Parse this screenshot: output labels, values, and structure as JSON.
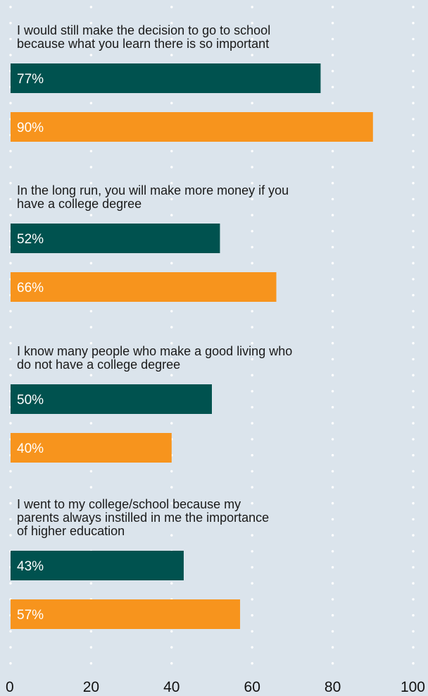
{
  "chart_data": {
    "type": "bar",
    "orientation": "horizontal",
    "xlim": [
      0,
      100
    ],
    "x_ticks": [
      "0",
      "20",
      "40",
      "60",
      "80",
      "100"
    ],
    "grid": "dotted vertical",
    "colors": {
      "series_1": "#00524f",
      "series_2": "#f7941d",
      "background": "#dbe4ec"
    },
    "categories": [
      "I would still make the decision to go to school because what you learn there is so important",
      "In the long run, you will make more money if you have a college degree",
      "I know many people who make a good living who do not have a college degree",
      "I went to my college/school because my parents always instilled in me the importance of higher education"
    ],
    "category_lines": [
      [
        "I would still make the decision to go to school",
        "because what you learn there is so important"
      ],
      [
        "In the long run, you will make more money if you",
        "have a college degree"
      ],
      [
        "I know many people who make a good living who",
        "do not have a college degree"
      ],
      [
        "I went to my college/school because my",
        "parents always instilled in me the importance",
        "of higher education"
      ]
    ],
    "series": [
      {
        "values": [
          77,
          52,
          50,
          43
        ],
        "labels": [
          "77%",
          "52%",
          "50%",
          "43%"
        ]
      },
      {
        "values": [
          90,
          66,
          40,
          57
        ],
        "labels": [
          "90%",
          "66%",
          "40%",
          "57%"
        ]
      }
    ]
  }
}
